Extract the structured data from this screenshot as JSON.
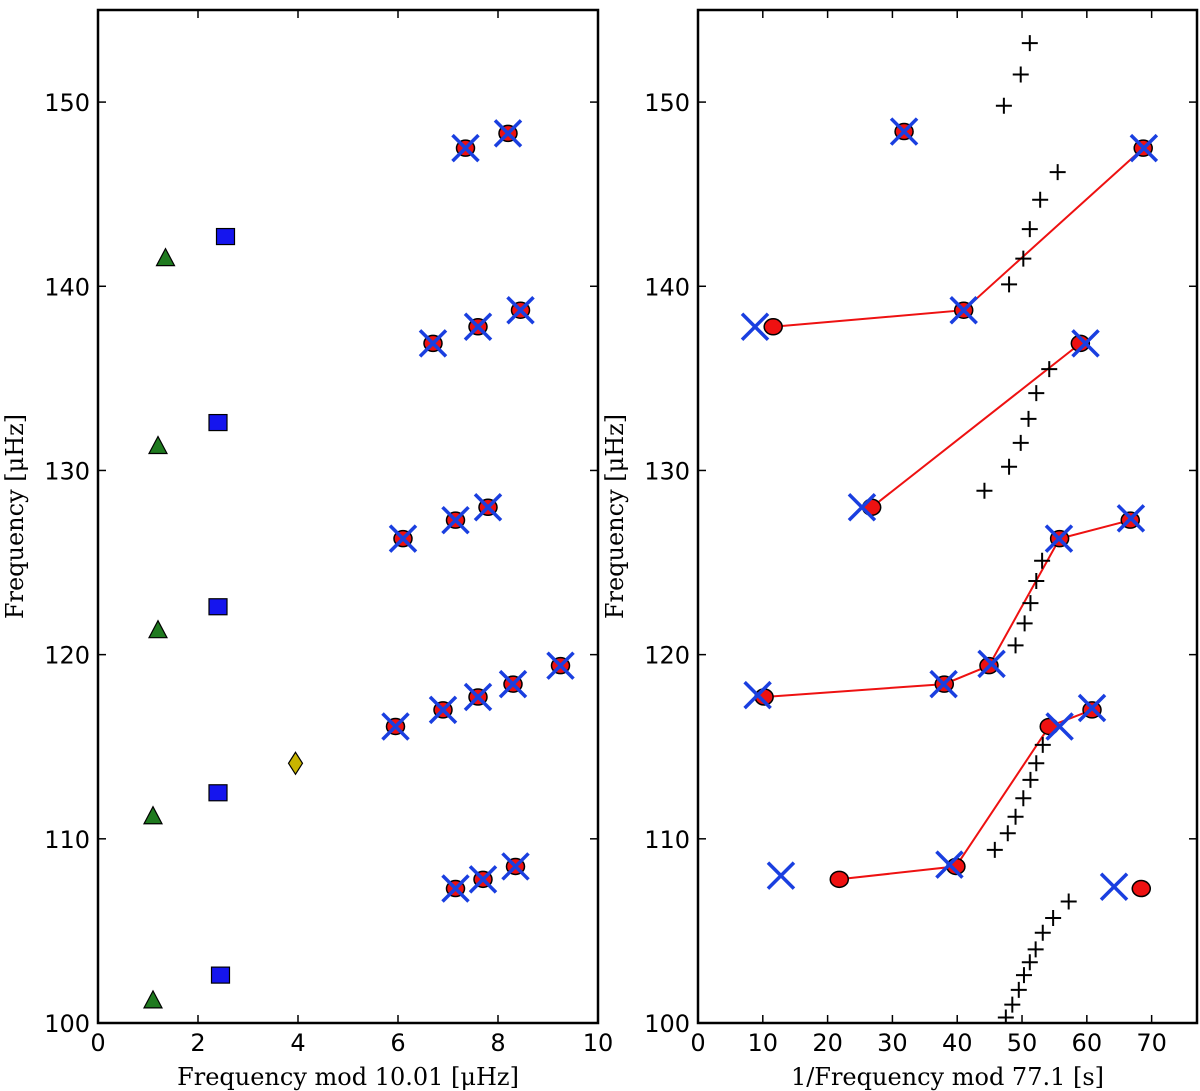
{
  "chart_data": [
    {
      "type": "scatter",
      "xlabel": "Frequency mod 10.01 [μHz]",
      "ylabel": "Frequency [μHz]",
      "xlim": [
        0,
        10
      ],
      "ylim": [
        100,
        155
      ],
      "xticks": [
        0,
        2,
        4,
        6,
        8,
        10
      ],
      "yticks": [
        100,
        110,
        120,
        130,
        140,
        150
      ],
      "grid": false,
      "series": [
        {
          "name": "l=0 triangles",
          "marker": "triangle",
          "color": "#1f7a1f",
          "points": [
            [
              1.1,
              101.2
            ],
            [
              1.1,
              111.2
            ],
            [
              1.2,
              121.3
            ],
            [
              1.2,
              131.3
            ],
            [
              1.35,
              141.5
            ]
          ]
        },
        {
          "name": "l=2 squares",
          "marker": "square",
          "color": "#1515ee",
          "points": [
            [
              2.45,
              102.6
            ],
            [
              2.4,
              112.5
            ],
            [
              2.4,
              122.6
            ],
            [
              2.4,
              132.6
            ],
            [
              2.55,
              142.7
            ]
          ]
        },
        {
          "name": "diamond",
          "marker": "diamond",
          "color": "#c8b400",
          "points": [
            [
              3.95,
              114.1
            ]
          ]
        },
        {
          "name": "blue crosses",
          "marker": "x",
          "color": "#1a3fe0",
          "points": [
            [
              7.15,
              107.3
            ],
            [
              7.7,
              107.8
            ],
            [
              8.35,
              108.5
            ],
            [
              5.95,
              116.1
            ],
            [
              6.9,
              117.0
            ],
            [
              7.6,
              117.7
            ],
            [
              8.3,
              118.4
            ],
            [
              9.25,
              119.4
            ],
            [
              6.1,
              126.3
            ],
            [
              7.15,
              127.3
            ],
            [
              7.8,
              128.0
            ],
            [
              6.7,
              136.9
            ],
            [
              7.6,
              137.8
            ],
            [
              8.45,
              138.7
            ],
            [
              7.35,
              147.5
            ],
            [
              8.2,
              148.3
            ]
          ]
        },
        {
          "name": "red circles",
          "marker": "circle",
          "color": "#ee1111",
          "points": [
            [
              7.15,
              107.3
            ],
            [
              7.7,
              107.8
            ],
            [
              8.35,
              108.5
            ],
            [
              5.95,
              116.1
            ],
            [
              6.9,
              117.0
            ],
            [
              7.6,
              117.7
            ],
            [
              8.3,
              118.4
            ],
            [
              9.25,
              119.4
            ],
            [
              6.1,
              126.3
            ],
            [
              7.15,
              127.3
            ],
            [
              7.8,
              128.0
            ],
            [
              6.7,
              136.9
            ],
            [
              7.6,
              137.8
            ],
            [
              8.45,
              138.7
            ],
            [
              7.35,
              147.5
            ],
            [
              8.2,
              148.3
            ]
          ]
        }
      ]
    },
    {
      "type": "scatter",
      "xlabel": "1/Frequency mod 77.1 [s]",
      "ylabel": "Frequency [μHz]",
      "xlim": [
        0,
        77
      ],
      "ylim": [
        100,
        155
      ],
      "xticks": [
        0,
        10,
        20,
        30,
        40,
        50,
        60,
        70
      ],
      "yticks": [
        100,
        110,
        120,
        130,
        140,
        150
      ],
      "grid": false,
      "series": [
        {
          "name": "plus markers",
          "marker": "plus",
          "color": "#000000",
          "points": [
            [
              47.5,
              100.3
            ],
            [
              48.5,
              101.0
            ],
            [
              49.5,
              101.8
            ],
            [
              50.3,
              102.6
            ],
            [
              51.2,
              103.3
            ],
            [
              52.1,
              104.0
            ],
            [
              53.2,
              104.9
            ],
            [
              54.8,
              105.7
            ],
            [
              57.2,
              106.6
            ],
            [
              45.8,
              109.4
            ],
            [
              47.8,
              110.3
            ],
            [
              49.0,
              111.2
            ],
            [
              50.2,
              112.2
            ],
            [
              51.3,
              113.2
            ],
            [
              52.2,
              114.1
            ],
            [
              53.2,
              115.1
            ],
            [
              54.2,
              116.0
            ],
            [
              49.0,
              120.5
            ],
            [
              50.4,
              121.7
            ],
            [
              51.3,
              122.8
            ],
            [
              52.2,
              124.0
            ],
            [
              53.1,
              125.1
            ],
            [
              44.2,
              128.9
            ],
            [
              48.0,
              130.2
            ],
            [
              49.8,
              131.5
            ],
            [
              51.0,
              132.8
            ],
            [
              52.2,
              134.2
            ],
            [
              54.2,
              135.5
            ],
            [
              48.0,
              140.1
            ],
            [
              50.2,
              141.5
            ],
            [
              51.2,
              143.1
            ],
            [
              52.8,
              144.7
            ],
            [
              55.5,
              146.2
            ],
            [
              47.2,
              149.8
            ],
            [
              49.8,
              151.5
            ],
            [
              51.2,
              153.2
            ]
          ]
        },
        {
          "name": "blue crosses",
          "marker": "x",
          "color": "#1a3fe0",
          "points": [
            [
              12.8,
              108.0
            ],
            [
              38.8,
              108.6
            ],
            [
              55.8,
              116.1
            ],
            [
              60.8,
              117.1
            ],
            [
              64.2,
              107.4
            ],
            [
              9.2,
              117.8
            ],
            [
              37.9,
              118.4
            ],
            [
              45.3,
              119.5
            ],
            [
              55.7,
              126.3
            ],
            [
              66.8,
              127.4
            ],
            [
              25.3,
              128.0
            ],
            [
              59.8,
              136.9
            ],
            [
              8.8,
              137.8
            ],
            [
              41.0,
              138.7
            ],
            [
              68.8,
              147.5
            ],
            [
              31.8,
              148.4
            ]
          ]
        },
        {
          "name": "red circles",
          "marker": "circle",
          "color": "#ee1111",
          "points": [
            [
              21.8,
              107.8
            ],
            [
              39.8,
              108.5
            ],
            [
              54.2,
              116.1
            ],
            [
              60.8,
              117.0
            ],
            [
              68.4,
              107.3
            ],
            [
              10.2,
              117.7
            ],
            [
              38.0,
              118.4
            ],
            [
              44.9,
              119.4
            ],
            [
              55.8,
              126.3
            ],
            [
              66.7,
              127.3
            ],
            [
              26.8,
              128.0
            ],
            [
              59.0,
              136.9
            ],
            [
              11.6,
              137.8
            ],
            [
              41.0,
              138.7
            ],
            [
              68.7,
              147.5
            ],
            [
              31.8,
              148.4
            ]
          ]
        },
        {
          "name": "red lines",
          "marker": "line",
          "color": "#ee1111",
          "lines": [
            [
              [
                21.8,
                107.8
              ],
              [
                39.8,
                108.5
              ],
              [
                54.2,
                116.1
              ],
              [
                60.8,
                117.0
              ]
            ],
            [
              [
                10.2,
                117.7
              ],
              [
                38.0,
                118.4
              ],
              [
                44.9,
                119.4
              ],
              [
                55.8,
                126.3
              ],
              [
                66.7,
                127.3
              ]
            ],
            [
              [
                26.8,
                128.0
              ],
              [
                59.0,
                136.9
              ]
            ],
            [
              [
                11.6,
                137.8
              ],
              [
                41.0,
                138.7
              ],
              [
                68.7,
                147.5
              ]
            ]
          ]
        }
      ]
    }
  ]
}
